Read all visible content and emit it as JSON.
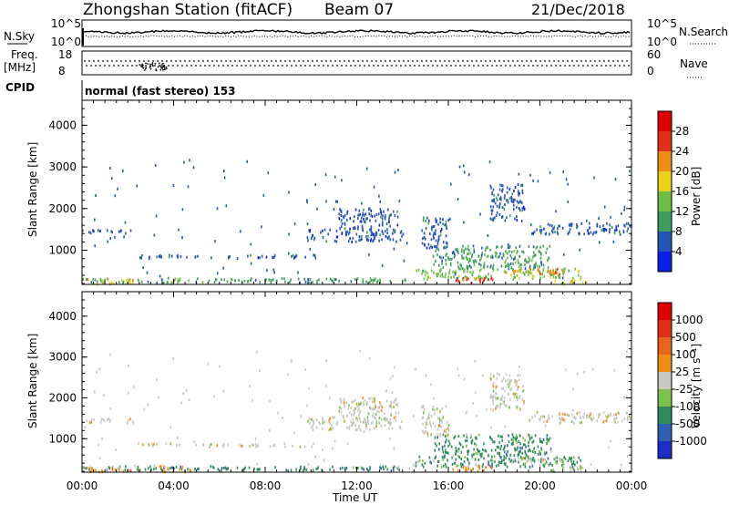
{
  "header": {
    "station": "Zhongshan Station (fitACF)",
    "beam": "Beam 07",
    "date": "21/Dec/2018"
  },
  "top_panels": {
    "nsky_label": "N.Sky",
    "nsky_ticks": [
      "10^5",
      "10^0"
    ],
    "nsearch_label": "N.Search",
    "nsearch_ticks": [
      "10^5",
      "10^0"
    ],
    "freq_label_1": "Freq.",
    "freq_label_2": "[MHz]",
    "freq_ticks": [
      "18",
      "8"
    ],
    "nave_label": "Nave",
    "nave_ticks": [
      "60",
      "0"
    ],
    "cpid_label": "CPID",
    "cpid_text": "normal (fast stereo) 153"
  },
  "chart_data": [
    {
      "type": "heatmap",
      "name": "Power [dB]",
      "ylabel": "Slant Range [km]",
      "xlabel": "Time UT",
      "x_ticks": [
        "00:00",
        "04:00",
        "08:00",
        "12:00",
        "16:00",
        "20:00",
        "00:00"
      ],
      "y_ticks": [
        1000,
        2000,
        3000,
        4000
      ],
      "ylim": [
        180,
        4600
      ],
      "xlim_hours": [
        0,
        24
      ],
      "colorbar_label": "Power [dB]",
      "colorbar_ticks": [
        "28",
        "24",
        "20",
        "16",
        "12",
        "8",
        "4"
      ],
      "colors": [
        "#0b1ee8",
        "#2456b8",
        "#3f9e5c",
        "#6fbf45",
        "#e8d21a",
        "#f08c14",
        "#e03018",
        "#e00000"
      ]
    },
    {
      "type": "heatmap",
      "name": "Velocity [m s-1]",
      "ylabel": "Slant Range [km]",
      "xlabel": "Time UT",
      "x_ticks": [
        "00:00",
        "04:00",
        "08:00",
        "12:00",
        "16:00",
        "20:00",
        "00:00"
      ],
      "y_ticks": [
        1000,
        2000,
        3000,
        4000
      ],
      "ylim": [
        180,
        4600
      ],
      "xlim_hours": [
        0,
        24
      ],
      "colorbar_label": "Velocity [m s⁻¹]",
      "colorbar_ticks": [
        "1000",
        "500",
        "100",
        "25",
        "-25",
        "-100",
        "-500",
        "-1000"
      ],
      "colors": [
        "#1a2fc8",
        "#2f5fb0",
        "#2e8a5a",
        "#7cc24a",
        "#c8c8c0",
        "#f08c14",
        "#e8641a",
        "#e03018",
        "#e00000"
      ]
    }
  ],
  "echo_regions": [
    {
      "t0": 0.0,
      "t1": 2.3,
      "r0": 1380,
      "r1": 1480,
      "p": 1,
      "v": 4
    },
    {
      "t0": 2.3,
      "t1": 10.2,
      "r0": 800,
      "r1": 880,
      "p": 1,
      "v": 4
    },
    {
      "t0": 0.0,
      "t1": 10.3,
      "r0": 220,
      "r1": 320,
      "p": 2,
      "v": 2
    },
    {
      "t0": 0.2,
      "t1": 2.5,
      "r0": 180,
      "r1": 300,
      "p": 4,
      "v": 5
    },
    {
      "t0": 3.3,
      "t1": 4.8,
      "r0": 180,
      "r1": 330,
      "p": 3,
      "v": 5
    },
    {
      "t0": 9.8,
      "t1": 14.0,
      "r0": 1200,
      "r1": 1500,
      "p": 1,
      "v": 4
    },
    {
      "t0": 11.2,
      "t1": 13.8,
      "r0": 1500,
      "r1": 2000,
      "p": 1,
      "v": 4
    },
    {
      "t0": 10.0,
      "t1": 14.5,
      "r0": 230,
      "r1": 320,
      "p": 2,
      "v": 2
    },
    {
      "t0": 14.5,
      "t1": 21.8,
      "r0": 300,
      "r1": 560,
      "p": 3,
      "v": 2
    },
    {
      "t0": 15.3,
      "t1": 20.5,
      "r0": 560,
      "r1": 1100,
      "p": 2,
      "v": 2
    },
    {
      "t0": 16.0,
      "t1": 18.0,
      "r0": 200,
      "r1": 330,
      "p": 6,
      "v": 5
    },
    {
      "t0": 18.5,
      "t1": 21.0,
      "r0": 420,
      "r1": 560,
      "p": 5,
      "v": 4
    },
    {
      "t0": 17.8,
      "t1": 19.3,
      "r0": 1700,
      "r1": 2600,
      "p": 1,
      "v": 4
    },
    {
      "t0": 19.5,
      "t1": 24.0,
      "r0": 1380,
      "r1": 1650,
      "p": 1,
      "v": 4
    },
    {
      "t0": 14.8,
      "t1": 16.0,
      "r0": 1050,
      "r1": 1800,
      "p": 1,
      "v": 4
    },
    {
      "t0": 20.5,
      "t1": 22.0,
      "r0": 180,
      "r1": 300,
      "p": 4,
      "v": 3
    }
  ]
}
